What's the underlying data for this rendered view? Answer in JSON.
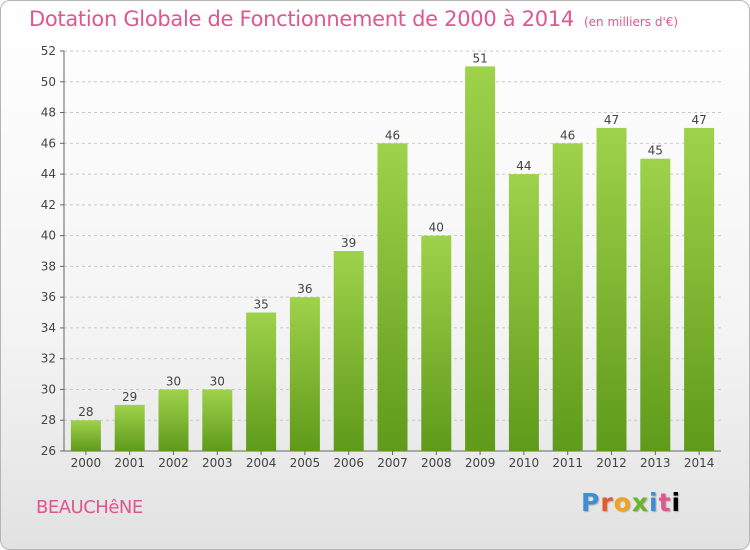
{
  "header": {
    "title": "Dotation Globale de Fonctionnement de 2000 à 2014",
    "unit": "(en milliers d'€)"
  },
  "commune": "BEAUCHêNE",
  "logo": {
    "letters": [
      "P",
      "r",
      "o",
      "x",
      "i",
      "t",
      "i"
    ]
  },
  "colors": {
    "title": "#e0568f",
    "bar_top": "#9fd24b",
    "bar_bottom": "#5f9a1a",
    "grid": "#c8c8c8"
  },
  "chart_data": {
    "type": "bar",
    "categories": [
      "2000",
      "2001",
      "2002",
      "2003",
      "2004",
      "2005",
      "2006",
      "2007",
      "2008",
      "2009",
      "2010",
      "2011",
      "2012",
      "2013",
      "2014"
    ],
    "values": [
      28,
      29,
      30,
      30,
      35,
      36,
      39,
      46,
      40,
      51,
      44,
      46,
      47,
      45,
      47
    ],
    "ylim": [
      26,
      52
    ],
    "yticks": [
      26,
      28,
      30,
      32,
      34,
      36,
      38,
      40,
      42,
      44,
      46,
      48,
      50,
      52
    ],
    "grid": true,
    "data_labels": true
  }
}
